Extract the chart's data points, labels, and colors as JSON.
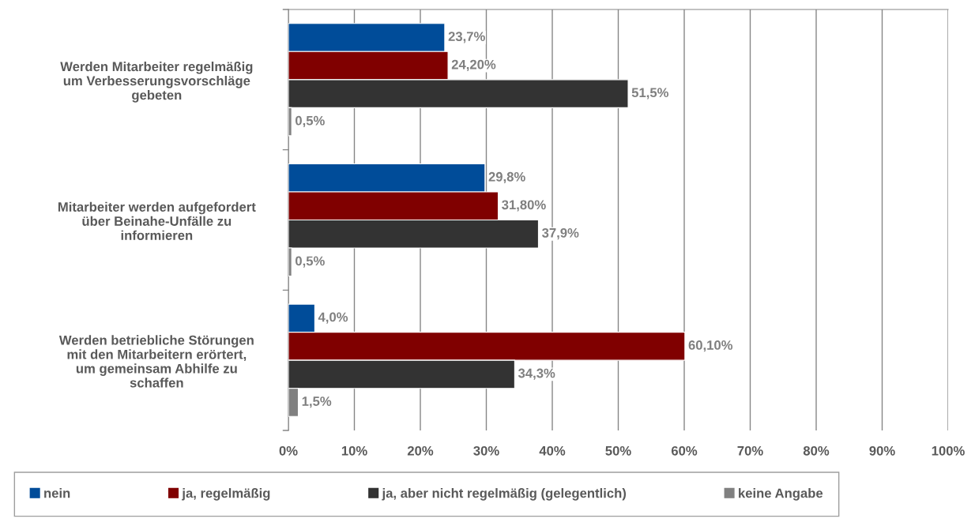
{
  "chart_data": {
    "type": "bar",
    "orientation": "horizontal",
    "categories": [
      "Werden Mitarbeiter regelmäßig\num Verbesserungsvorschläge\ngebeten",
      "Mitarbeiter werden aufgefordert\nüber Beinahe-Unfälle zu\ninformieren",
      "Werden betriebliche Störungen\nmit den Mitarbeitern erörtert,\num gemeinsam Abhilfe zu\nschaffen"
    ],
    "series": [
      {
        "name": "nein",
        "color": "#004c99",
        "values": [
          23.7,
          29.8,
          4.0
        ],
        "value_labels": [
          "23,7%",
          "29,8%",
          "4,0%"
        ]
      },
      {
        "name": "ja, regelmäßig",
        "color": "#800000",
        "values": [
          24.2,
          31.8,
          60.1
        ],
        "value_labels": [
          "24,20%",
          "31,80%",
          "60,10%"
        ]
      },
      {
        "name": "ja, aber nicht regelmäßig (gelegentlich)",
        "color": "#333333",
        "values": [
          51.5,
          37.9,
          34.3
        ],
        "value_labels": [
          "51,5%",
          "37,9%",
          "34,3%"
        ]
      },
      {
        "name": "keine Angabe",
        "color": "#808080",
        "values": [
          0.5,
          0.5,
          1.5
        ],
        "value_labels": [
          "0,5%",
          "0,5%",
          "1,5%"
        ]
      }
    ],
    "xlim": [
      0,
      100
    ],
    "xticks": [
      {
        "value": 0,
        "label": "0%"
      },
      {
        "value": 10,
        "label": "10%"
      },
      {
        "value": 20,
        "label": "20%"
      },
      {
        "value": 30,
        "label": "30%"
      },
      {
        "value": 40,
        "label": "40%"
      },
      {
        "value": 50,
        "label": "50%"
      },
      {
        "value": 60,
        "label": "60%"
      },
      {
        "value": 70,
        "label": "70%"
      },
      {
        "value": 80,
        "label": "80%"
      },
      {
        "value": 90,
        "label": "90%"
      },
      {
        "value": 100,
        "label": "100%"
      }
    ],
    "grid": "x",
    "legend": "bottom"
  }
}
